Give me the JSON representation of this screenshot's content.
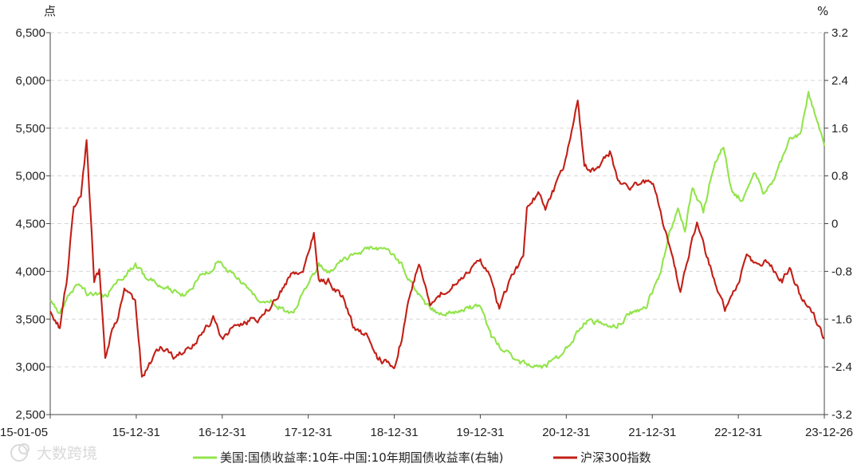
{
  "chart_data": {
    "type": "line",
    "left_unit": "点",
    "right_unit": "%",
    "x_tick_labels": [
      "15-01-05",
      "15-12-31",
      "16-12-31",
      "17-12-31",
      "18-12-31",
      "19-12-31",
      "20-12-31",
      "21-12-31",
      "22-12-31",
      "23-12-26"
    ],
    "x_range": [
      "2015-01-05",
      "2023-12-26"
    ],
    "y_left": {
      "min": 2500,
      "max": 6500,
      "ticks": [
        "2,500",
        "3,000",
        "3,500",
        "4,000",
        "4,500",
        "5,000",
        "5,500",
        "6,000",
        "6,500"
      ]
    },
    "y_right": {
      "min": -3.2,
      "max": 3.2,
      "ticks": [
        "-3.2",
        "-2.4",
        "-1.6",
        "-0.8",
        "0",
        "0.8",
        "1.6",
        "2.4",
        "3.2"
      ]
    },
    "grid": "horizontal-dashed",
    "legend_position": "bottom",
    "series": [
      {
        "name": "美国:国债收益率:10年-中国:10年期国债收益率(右轴)",
        "axis": "right",
        "color": "#92e44b",
        "points": [
          [
            "2015-01-05",
            -1.3
          ],
          [
            "2015-02-15",
            -1.5
          ],
          [
            "2015-03-20",
            -1.2
          ],
          [
            "2015-05-01",
            -1.0
          ],
          [
            "2015-06-15",
            -1.2
          ],
          [
            "2015-09-01",
            -1.2
          ],
          [
            "2015-11-01",
            -0.9
          ],
          [
            "2016-01-01",
            -0.7
          ],
          [
            "2016-02-15",
            -0.9
          ],
          [
            "2016-04-01",
            -1.0
          ],
          [
            "2016-06-01",
            -1.1
          ],
          [
            "2016-08-01",
            -1.2
          ],
          [
            "2016-10-01",
            -0.9
          ],
          [
            "2016-11-15",
            -0.8
          ],
          [
            "2016-12-15",
            -0.6
          ],
          [
            "2017-02-01",
            -0.8
          ],
          [
            "2017-04-01",
            -1.0
          ],
          [
            "2017-06-01",
            -1.3
          ],
          [
            "2017-08-01",
            -1.3
          ],
          [
            "2017-10-01",
            -1.5
          ],
          [
            "2017-11-15",
            -1.4
          ],
          [
            "2018-01-01",
            -1.0
          ],
          [
            "2018-02-15",
            -0.7
          ],
          [
            "2018-04-01",
            -0.8
          ],
          [
            "2018-06-01",
            -0.6
          ],
          [
            "2018-08-01",
            -0.5
          ],
          [
            "2018-10-01",
            -0.4
          ],
          [
            "2018-12-15",
            -0.5
          ],
          [
            "2019-02-01",
            -0.7
          ],
          [
            "2019-03-15",
            -1.0
          ],
          [
            "2019-05-01",
            -1.3
          ],
          [
            "2019-07-01",
            -1.5
          ],
          [
            "2019-09-01",
            -1.5
          ],
          [
            "2019-11-01",
            -1.4
          ],
          [
            "2020-01-01",
            -1.4
          ],
          [
            "2020-02-15",
            -1.9
          ],
          [
            "2020-04-01",
            -2.1
          ],
          [
            "2020-06-01",
            -2.3
          ],
          [
            "2020-08-01",
            -2.4
          ],
          [
            "2020-10-01",
            -2.4
          ],
          [
            "2020-12-01",
            -2.2
          ],
          [
            "2021-02-01",
            -1.9
          ],
          [
            "2021-04-01",
            -1.6
          ],
          [
            "2021-06-01",
            -1.7
          ],
          [
            "2021-08-01",
            -1.7
          ],
          [
            "2021-10-01",
            -1.5
          ],
          [
            "2021-12-01",
            -1.4
          ],
          [
            "2022-02-01",
            -0.8
          ],
          [
            "2022-03-15",
            -0.1
          ],
          [
            "2022-04-15",
            0.2
          ],
          [
            "2022-05-15",
            -0.1
          ],
          [
            "2022-06-15",
            0.6
          ],
          [
            "2022-08-01",
            0.2
          ],
          [
            "2022-09-15",
            1.0
          ],
          [
            "2022-10-25",
            1.3
          ],
          [
            "2022-12-01",
            0.5
          ],
          [
            "2023-01-15",
            0.4
          ],
          [
            "2023-03-01",
            0.9
          ],
          [
            "2023-04-15",
            0.5
          ],
          [
            "2023-06-01",
            0.8
          ],
          [
            "2023-08-01",
            1.4
          ],
          [
            "2023-09-15",
            1.5
          ],
          [
            "2023-10-20",
            2.2
          ],
          [
            "2023-12-26",
            1.3
          ]
        ]
      },
      {
        "name": "沪深300指数",
        "axis": "left",
        "color": "#c21f16",
        "points": [
          [
            "2015-01-05",
            3600
          ],
          [
            "2015-02-15",
            3400
          ],
          [
            "2015-03-15",
            3900
          ],
          [
            "2015-04-15",
            4700
          ],
          [
            "2015-05-15",
            4800
          ],
          [
            "2015-06-08",
            5350
          ],
          [
            "2015-07-10",
            3900
          ],
          [
            "2015-08-01",
            4000
          ],
          [
            "2015-08-26",
            3100
          ],
          [
            "2015-09-15",
            3300
          ],
          [
            "2015-10-15",
            3500
          ],
          [
            "2015-11-15",
            3800
          ],
          [
            "2015-12-31",
            3700
          ],
          [
            "2016-01-28",
            2900
          ],
          [
            "2016-04-15",
            3200
          ],
          [
            "2016-06-15",
            3100
          ],
          [
            "2016-09-15",
            3250
          ],
          [
            "2016-11-25",
            3500
          ],
          [
            "2016-12-31",
            3300
          ],
          [
            "2017-03-01",
            3450
          ],
          [
            "2017-06-01",
            3500
          ],
          [
            "2017-08-15",
            3700
          ],
          [
            "2017-10-15",
            3950
          ],
          [
            "2017-12-15",
            4050
          ],
          [
            "2018-01-25",
            4400
          ],
          [
            "2018-02-15",
            3900
          ],
          [
            "2018-04-01",
            3900
          ],
          [
            "2018-06-01",
            3700
          ],
          [
            "2018-07-15",
            3400
          ],
          [
            "2018-09-15",
            3300
          ],
          [
            "2018-10-20",
            3100
          ],
          [
            "2018-12-31",
            3000
          ],
          [
            "2019-02-01",
            3300
          ],
          [
            "2019-03-01",
            3700
          ],
          [
            "2019-04-15",
            4100
          ],
          [
            "2019-06-01",
            3650
          ],
          [
            "2019-08-01",
            3800
          ],
          [
            "2019-10-01",
            3900
          ],
          [
            "2019-12-31",
            4100
          ],
          [
            "2020-02-01",
            4000
          ],
          [
            "2020-03-20",
            3600
          ],
          [
            "2020-05-01",
            3900
          ],
          [
            "2020-06-30",
            4150
          ],
          [
            "2020-07-15",
            4700
          ],
          [
            "2020-09-01",
            4800
          ],
          [
            "2020-10-01",
            4650
          ],
          [
            "2020-11-15",
            4900
          ],
          [
            "2020-12-31",
            5200
          ],
          [
            "2021-02-15",
            5800
          ],
          [
            "2021-03-15",
            5100
          ],
          [
            "2021-05-01",
            5050
          ],
          [
            "2021-07-01",
            5250
          ],
          [
            "2021-08-15",
            4900
          ],
          [
            "2021-10-15",
            4900
          ],
          [
            "2021-12-31",
            4950
          ],
          [
            "2022-02-01",
            4600
          ],
          [
            "2022-03-15",
            4200
          ],
          [
            "2022-04-26",
            3800
          ],
          [
            "2022-06-01",
            4200
          ],
          [
            "2022-07-05",
            4500
          ],
          [
            "2022-08-15",
            4150
          ],
          [
            "2022-10-31",
            3600
          ],
          [
            "2022-12-31",
            3900
          ],
          [
            "2023-01-31",
            4200
          ],
          [
            "2023-03-01",
            4100
          ],
          [
            "2023-05-01",
            4100
          ],
          [
            "2023-06-30",
            3900
          ],
          [
            "2023-08-01",
            4050
          ],
          [
            "2023-09-15",
            3750
          ],
          [
            "2023-11-01",
            3600
          ],
          [
            "2023-12-26",
            3300
          ]
        ]
      }
    ],
    "watermark": "大数跨境"
  }
}
